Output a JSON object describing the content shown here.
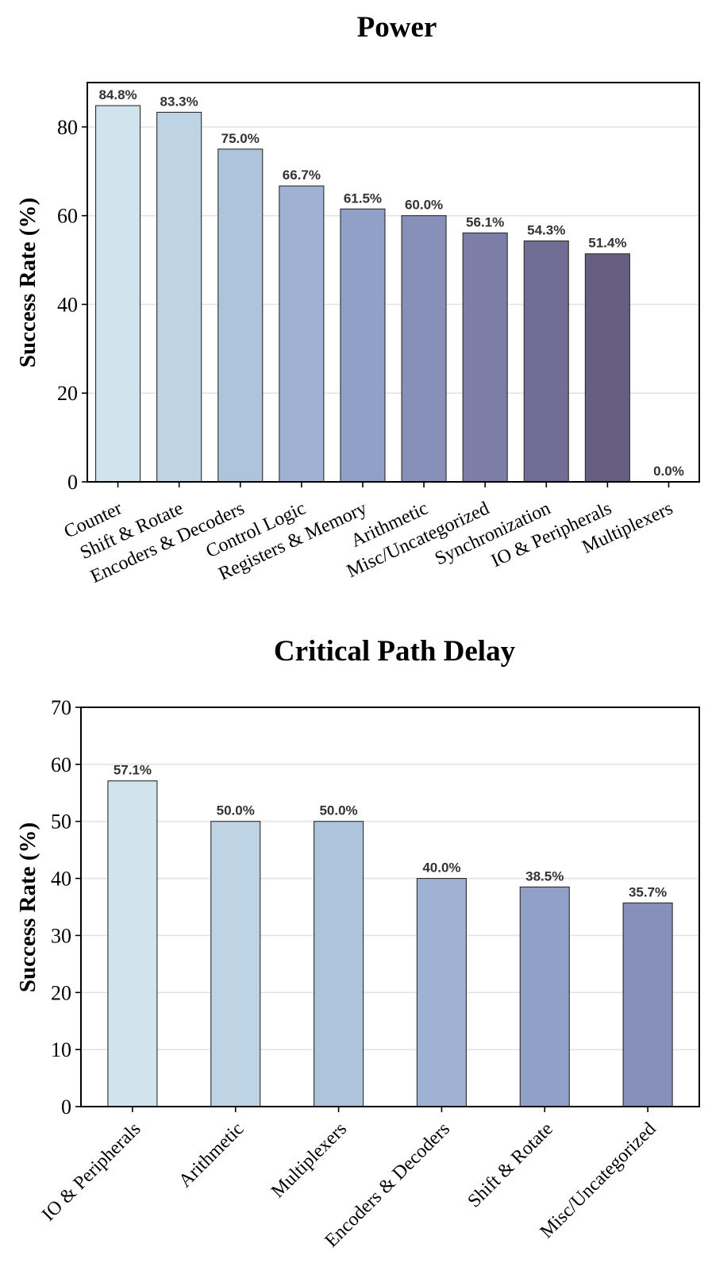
{
  "chart_data": [
    {
      "type": "bar",
      "title": "Power",
      "ylabel": "Success Rate (%)",
      "xlabel": "",
      "ylim": [
        0,
        90
      ],
      "yticks": [
        0,
        20,
        40,
        60,
        80
      ],
      "grid": "horizontal",
      "categories": [
        "Counter",
        "Shift & Rotate",
        "Encoders & Decoders",
        "Control Logic",
        "Registers & Memory",
        "Arithmetic",
        "Misc/Uncategorized",
        "Synchronization",
        "IO & Peripherals",
        "Multiplexers"
      ],
      "values": [
        84.8,
        83.3,
        75.0,
        66.7,
        61.5,
        60.0,
        56.1,
        54.3,
        51.4,
        0.0
      ],
      "data_labels": [
        "84.8%",
        "83.3%",
        "75.0%",
        "66.7%",
        "61.5%",
        "60.0%",
        "56.1%",
        "54.3%",
        "51.4%",
        "0.0%"
      ],
      "colors": [
        "#d1e3ec",
        "#bed3e3",
        "#aec3dc",
        "#9fb2d3",
        "#91a0c6",
        "#8790b9",
        "#7c7ea7",
        "#726d95",
        "#675e81",
        "#5b4f70"
      ]
    },
    {
      "type": "bar",
      "title": "Critical Path Delay",
      "ylabel": "Success Rate (%)",
      "xlabel": "",
      "ylim": [
        0,
        70
      ],
      "yticks": [
        0,
        10,
        20,
        30,
        40,
        50,
        60,
        70
      ],
      "grid": "horizontal",
      "categories": [
        "IO & Peripherals",
        "Arithmetic",
        "Multiplexers",
        "Encoders & Decoders",
        "Shift & Rotate",
        "Misc/Uncategorized"
      ],
      "values": [
        57.1,
        50.0,
        50.0,
        40.0,
        38.5,
        35.7
      ],
      "data_labels": [
        "57.1%",
        "50.0%",
        "50.0%",
        "40.0%",
        "38.5%",
        "35.7%"
      ],
      "colors": [
        "#d1e3ec",
        "#bed3e3",
        "#aec3dc",
        "#9fb2d3",
        "#91a0c6",
        "#8790b9"
      ]
    }
  ]
}
